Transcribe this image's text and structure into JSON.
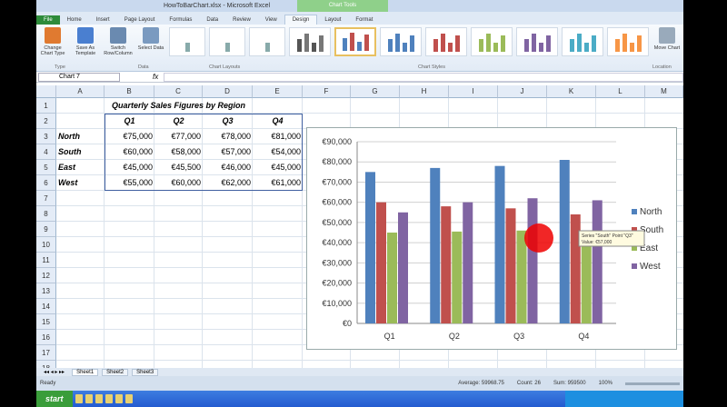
{
  "window": {
    "title": "HowToBarChart.xlsx - Microsoft Excel",
    "context_tab_group": "Chart Tools"
  },
  "tabs": [
    "File",
    "Home",
    "Insert",
    "Page Layout",
    "Formulas",
    "Data",
    "Review",
    "View",
    "Design",
    "Layout",
    "Format"
  ],
  "active_tab": "Design",
  "ribbon": {
    "buttons": [
      {
        "label": "Change Chart Type",
        "group": "Type"
      },
      {
        "label": "Save As Template",
        "group": "Type"
      },
      {
        "label": "Switch Row/Column",
        "group": "Data"
      },
      {
        "label": "Select Data",
        "group": "Data"
      }
    ],
    "groups": [
      "Type",
      "Data",
      "Chart Layouts",
      "Chart Styles",
      "Location"
    ],
    "move_chart": "Move Chart"
  },
  "formula_bar": {
    "name_box": "Chart 7",
    "fx": "fx",
    "value": ""
  },
  "columns": [
    "A",
    "B",
    "C",
    "D",
    "E",
    "F",
    "G",
    "H",
    "I",
    "J",
    "K",
    "L",
    "M"
  ],
  "rows": [
    "1",
    "2",
    "3",
    "4",
    "5",
    "6",
    "7",
    "8",
    "9",
    "10",
    "11",
    "12",
    "13",
    "14",
    "15",
    "16",
    "17",
    "18"
  ],
  "sheet": {
    "title": "Quarterly Sales Figures by Region",
    "headers": [
      "Q1",
      "Q2",
      "Q3",
      "Q4"
    ],
    "data": [
      {
        "region": "North",
        "values": [
          "€75,000",
          "€77,000",
          "€78,000",
          "€81,000"
        ]
      },
      {
        "region": "South",
        "values": [
          "€60,000",
          "€58,000",
          "€57,000",
          "€54,000"
        ]
      },
      {
        "region": "East",
        "values": [
          "€45,000",
          "€45,500",
          "€46,000",
          "€45,000"
        ]
      },
      {
        "region": "West",
        "values": [
          "€55,000",
          "€60,000",
          "€62,000",
          "€61,000"
        ]
      }
    ]
  },
  "chart_data": {
    "type": "bar",
    "categories": [
      "Q1",
      "Q2",
      "Q3",
      "Q4"
    ],
    "series": [
      {
        "name": "North",
        "values": [
          75000,
          77000,
          78000,
          81000
        ],
        "color": "#4f81bd"
      },
      {
        "name": "South",
        "values": [
          60000,
          58000,
          57000,
          54000
        ],
        "color": "#c0504d"
      },
      {
        "name": "East",
        "values": [
          45000,
          45500,
          46000,
          45000
        ],
        "color": "#9bbb59"
      },
      {
        "name": "West",
        "values": [
          55000,
          60000,
          62000,
          61000
        ],
        "color": "#8064a2"
      }
    ],
    "ylim": [
      0,
      90000
    ],
    "yticks": [
      "€0",
      "€10,000",
      "€20,000",
      "€30,000",
      "€40,000",
      "€50,000",
      "€60,000",
      "€70,000",
      "€80,000",
      "€90,000"
    ],
    "grid": true,
    "legend": "right",
    "tooltip": [
      "Series \"South\" Point \"Q3\"",
      "Value: €57,000"
    ]
  },
  "sheet_tabs": [
    "Sheet1",
    "Sheet2",
    "Sheet3"
  ],
  "status": {
    "ready": "Ready",
    "average": "Average: 59968.75",
    "count": "Count: 26",
    "sum": "Sum: 959500",
    "zoom": "100%"
  },
  "taskbar": {
    "start": "start"
  }
}
